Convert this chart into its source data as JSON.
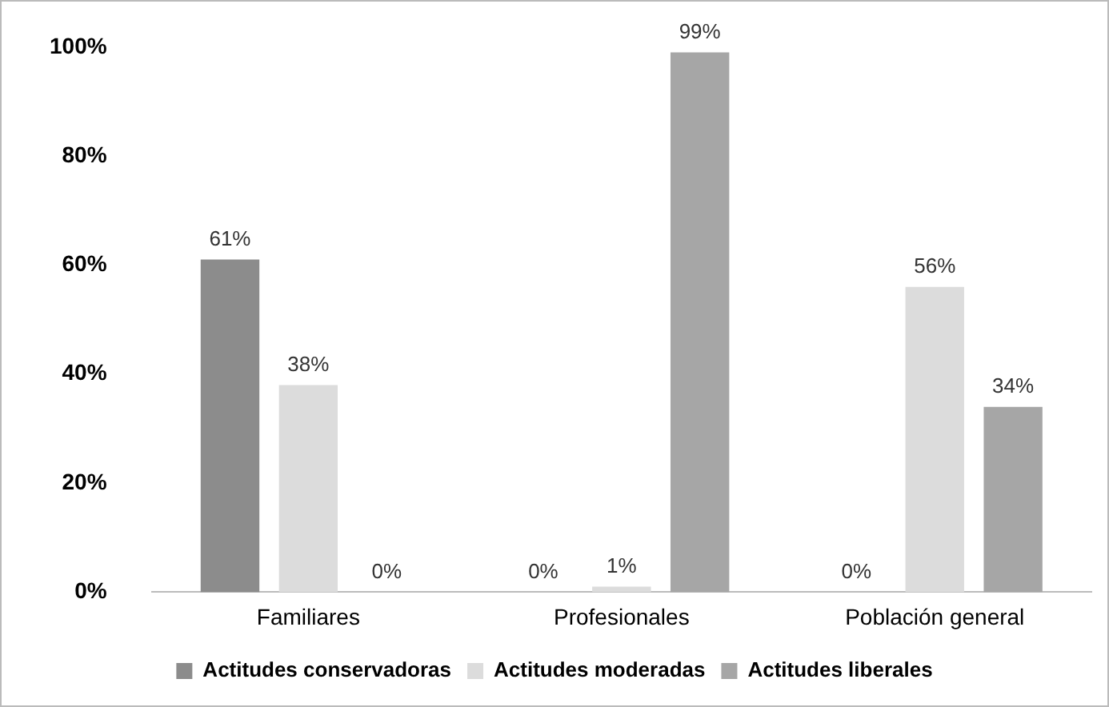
{
  "chart_data": {
    "type": "bar",
    "categories": [
      "Familiares",
      "Profesionales",
      "Población general"
    ],
    "series": [
      {
        "name": "Actitudes conservadoras",
        "color": "#8c8c8c",
        "values": [
          61,
          0,
          0
        ]
      },
      {
        "name": "Actitudes moderadas",
        "color": "#dcdcdc",
        "values": [
          38,
          1,
          56
        ]
      },
      {
        "name": "Actitudes liberales",
        "color": "#a6a6a6",
        "values": [
          0,
          99,
          34
        ]
      }
    ],
    "value_labels": [
      [
        "61%",
        "0%",
        "0%"
      ],
      [
        "38%",
        "1%",
        "56%"
      ],
      [
        "0%",
        "99%",
        "34%"
      ]
    ],
    "ylim": [
      0,
      100
    ],
    "yticks": [
      {
        "value": 0,
        "label": "0%"
      },
      {
        "value": 20,
        "label": "20%"
      },
      {
        "value": 40,
        "label": "40%"
      },
      {
        "value": 60,
        "label": "60%"
      },
      {
        "value": 80,
        "label": "80%"
      },
      {
        "value": 100,
        "label": "100%"
      }
    ],
    "grid": false,
    "legend": "bottom"
  }
}
